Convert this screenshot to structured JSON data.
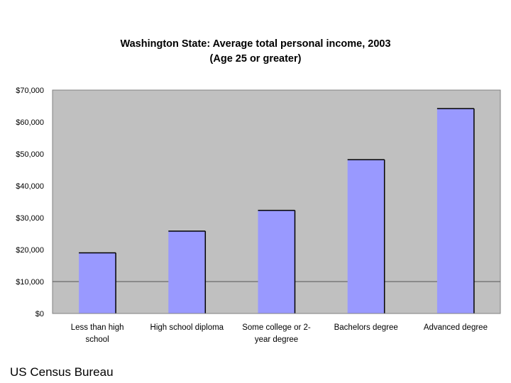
{
  "chart_data": {
    "type": "bar",
    "title": "Washington State: Average total personal income, 2003",
    "subtitle": "(Age 25 or greater)",
    "categories": [
      "Less than high school",
      "High school diploma",
      "Some college or 2-year degree",
      "Bachelors degree",
      "Advanced degree"
    ],
    "category_label_lines": [
      [
        "Less than high",
        "school"
      ],
      [
        "High school diploma"
      ],
      [
        "Some college or 2-",
        "year degree"
      ],
      [
        "Bachelors degree"
      ],
      [
        "Advanced degree"
      ]
    ],
    "values": [
      19000,
      25800,
      32300,
      48200,
      64200
    ],
    "ylim": [
      0,
      70000
    ],
    "yticks": [
      0,
      10000,
      20000,
      30000,
      40000,
      50000,
      60000,
      70000
    ],
    "ytick_labels": [
      "$0",
      "$10,000",
      "$20,000",
      "$30,000",
      "$40,000",
      "$50,000",
      "$60,000",
      "$70,000"
    ],
    "reference_line": 10000,
    "xlabel": "",
    "ylabel": "",
    "grid": false,
    "legend": "none",
    "colors": {
      "bar": "#9999ff",
      "plot_bg": "#c0c0c0",
      "axis": "#808080"
    }
  },
  "source": "US Census Bureau"
}
